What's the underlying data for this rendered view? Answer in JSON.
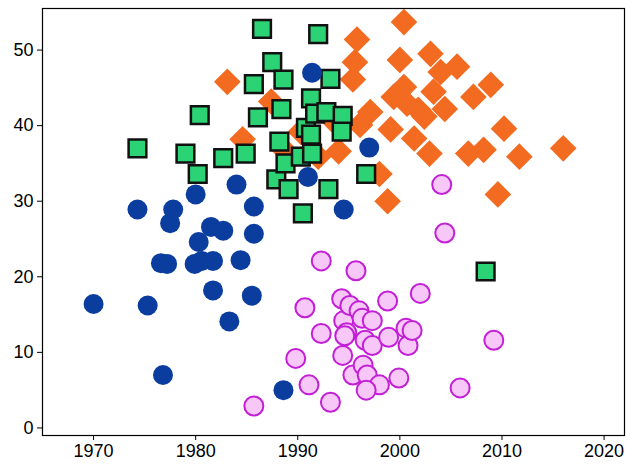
{
  "chart_data": {
    "type": "scatter",
    "xlim": [
      1965,
      2022
    ],
    "ylim": [
      -1,
      55.5
    ],
    "xticks": [
      1970,
      1980,
      1990,
      2000,
      2010,
      2020
    ],
    "yticks": [
      0,
      10,
      20,
      30,
      40,
      50
    ],
    "series": [
      {
        "color": "#f26b21",
        "marker": "diamond",
        "x": [
          1983.1,
          1984.6,
          1987.4,
          1988.8,
          1990.3,
          1992.0,
          1993.3,
          1994.0,
          1995.4,
          1995.6,
          1995.8,
          1996.1,
          1997.1,
          1998.0,
          1998.8,
          1999.1,
          1999.4,
          2000.0,
          2000.4,
          2000.4,
          2000.7,
          2001.4,
          2001.8,
          2002.4,
          2002.9,
          2003.0,
          2003.3,
          2004.0,
          2004.4,
          2005.6,
          2006.7,
          2007.2,
          2008.2,
          2008.9,
          2009.6,
          2010.2,
          2011.7,
          2016.0
        ],
        "values": [
          45.8,
          38.2,
          43.2,
          36.6,
          39.2,
          35.9,
          40.9,
          36.6,
          46.1,
          48.4,
          51.4,
          40.1,
          41.8,
          33.6,
          30.0,
          39.5,
          43.8,
          48.7,
          53.7,
          45.1,
          42.9,
          38.3,
          42.1,
          41.2,
          36.3,
          49.5,
          44.5,
          47.1,
          42.2,
          47.8,
          36.3,
          43.8,
          36.8,
          45.4,
          30.9,
          39.6,
          35.9,
          37.0
        ]
      },
      {
        "color": "#2bd374",
        "marker": "square",
        "x": [
          1974.3,
          1979.0,
          1980.4,
          1980.2,
          1982.7,
          1984.9,
          1986.5,
          1985.7,
          1987.5,
          1986.1,
          1988.2,
          1988.6,
          1988.4,
          1987.9,
          1988.8,
          1989.1,
          1990.3,
          1990.5,
          1990.8,
          1991.3,
          1991.7,
          1991.3,
          1991.4,
          1992.0,
          1993.2,
          1992.8,
          1993.0,
          1994.4,
          1994.3,
          1996.7,
          2008.4
        ],
        "values": [
          37.0,
          36.3,
          41.4,
          33.6,
          35.7,
          36.3,
          52.8,
          45.5,
          48.4,
          41.1,
          37.9,
          46.1,
          42.2,
          32.9,
          35.0,
          31.6,
          35.9,
          28.4,
          39.7,
          43.6,
          41.6,
          38.8,
          36.3,
          52.1,
          46.2,
          41.8,
          31.6,
          41.3,
          39.2,
          33.6,
          20.7
        ]
      },
      {
        "color": "#0a3d9e",
        "marker": "circle",
        "x": [
          1970.0,
          1974.3,
          1975.3,
          1976.6,
          1976.8,
          1977.2,
          1977.5,
          1977.8,
          1979.9,
          1980.0,
          1980.3,
          1980.6,
          1981.5,
          1981.7,
          1981.7,
          1982.7,
          1983.3,
          1984.0,
          1984.4,
          1985.5,
          1985.7,
          1985.7,
          1988.6,
          1991.0,
          1991.4,
          1994.5,
          1997.0
        ],
        "values": [
          16.4,
          28.9,
          16.2,
          21.8,
          7.0,
          21.7,
          27.1,
          28.9,
          21.7,
          30.9,
          24.6,
          22.1,
          26.6,
          22.1,
          18.2,
          26.1,
          14.1,
          32.2,
          22.2,
          17.5,
          25.7,
          29.3,
          5.0,
          33.2,
          47.0,
          28.9,
          37.1
        ]
      },
      {
        "color": "#f7c8f7",
        "marker": "open_circle",
        "x": [
          1985.7,
          1989.8,
          1991.1,
          1990.7,
          1992.3,
          1992.3,
          1993.2,
          1994.3,
          1994.5,
          1994.8,
          1994.4,
          1994.6,
          1995.4,
          1995.7,
          1995.1,
          1996.0,
          1996.3,
          1996.6,
          1996.4,
          1996.8,
          1997.3,
          1997.3,
          1998.0,
          1998.8,
          1998.9,
          1999.9,
          2000.6,
          2000.8,
          2001.2,
          2002.0,
          2004.1,
          2004.4,
          2005.9,
          2009.2,
          1996.7
        ],
        "values": [
          2.9,
          9.2,
          5.7,
          15.9,
          22.1,
          12.5,
          3.4,
          17.1,
          14.2,
          12.6,
          9.6,
          12.2,
          7.0,
          20.8,
          16.2,
          15.5,
          14.5,
          11.6,
          8.3,
          7.0,
          14.2,
          10.9,
          5.7,
          16.8,
          12.0,
          6.6,
          13.2,
          10.9,
          12.9,
          17.8,
          32.2,
          25.8,
          5.3,
          11.6,
          5.0
        ]
      }
    ]
  }
}
